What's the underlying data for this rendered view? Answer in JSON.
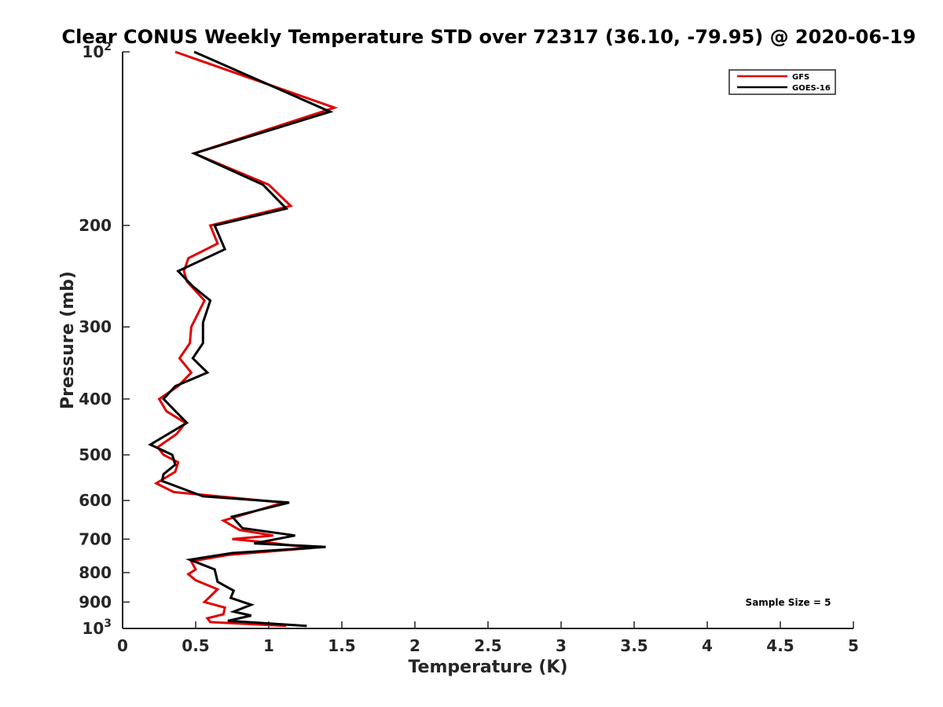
{
  "chart_data": {
    "type": "line",
    "title": "Clear CONUS Weekly Temperature STD over 72317 (36.10, -79.95) @ 2020-06-19",
    "xlabel": "Temperature (K)",
    "ylabel": "Pressure (mb)",
    "xlim": [
      0,
      5
    ],
    "ylim": [
      100,
      1000
    ],
    "y_scale": "log",
    "y_reversed": true,
    "grid": false,
    "legend_position": "top-right",
    "x_ticks": [
      "0",
      "0.5",
      "1",
      "1.5",
      "2",
      "2.5",
      "3",
      "3.5",
      "4",
      "4.5",
      "5"
    ],
    "y_ticks": [
      {
        "value": 100,
        "label": "10",
        "sup": "2"
      },
      {
        "value": 200,
        "label": "200",
        "sup": ""
      },
      {
        "value": 300,
        "label": "300",
        "sup": ""
      },
      {
        "value": 400,
        "label": "400",
        "sup": ""
      },
      {
        "value": 500,
        "label": "500",
        "sup": ""
      },
      {
        "value": 600,
        "label": "600",
        "sup": ""
      },
      {
        "value": 700,
        "label": "700",
        "sup": ""
      },
      {
        "value": 800,
        "label": "800",
        "sup": ""
      },
      {
        "value": 900,
        "label": "900",
        "sup": ""
      },
      {
        "value": 1000,
        "label": "10",
        "sup": "3"
      }
    ],
    "series": [
      {
        "name": "GFS",
        "color": "#e00000",
        "points": [
          [
            0.36,
            100
          ],
          [
            1.45,
            125
          ],
          [
            0.49,
            150
          ],
          [
            1.0,
            170
          ],
          [
            1.15,
            185
          ],
          [
            0.6,
            200
          ],
          [
            0.65,
            215
          ],
          [
            0.45,
            228
          ],
          [
            0.42,
            240
          ],
          [
            0.44,
            250
          ],
          [
            0.56,
            270
          ],
          [
            0.47,
            300
          ],
          [
            0.46,
            320
          ],
          [
            0.39,
            340
          ],
          [
            0.47,
            360
          ],
          [
            0.38,
            380
          ],
          [
            0.25,
            400
          ],
          [
            0.3,
            420
          ],
          [
            0.43,
            440
          ],
          [
            0.37,
            460
          ],
          [
            0.24,
            485
          ],
          [
            0.28,
            500
          ],
          [
            0.38,
            515
          ],
          [
            0.36,
            535
          ],
          [
            0.23,
            560
          ],
          [
            0.35,
            580
          ],
          [
            1.1,
            605
          ],
          [
            0.69,
            650
          ],
          [
            0.8,
            675
          ],
          [
            1.03,
            690
          ],
          [
            0.75,
            700
          ],
          [
            1.0,
            710
          ],
          [
            1.3,
            725
          ],
          [
            0.73,
            745
          ],
          [
            0.47,
            765
          ],
          [
            0.5,
            790
          ],
          [
            0.45,
            805
          ],
          [
            0.5,
            825
          ],
          [
            0.65,
            855
          ],
          [
            0.56,
            900
          ],
          [
            0.7,
            920
          ],
          [
            0.69,
            945
          ],
          [
            0.58,
            960
          ],
          [
            0.6,
            975
          ],
          [
            1.12,
            990
          ]
        ]
      },
      {
        "name": "GOES-16",
        "color": "#000000",
        "points": [
          [
            0.49,
            100
          ],
          [
            1.42,
            127
          ],
          [
            0.49,
            150
          ],
          [
            0.96,
            170
          ],
          [
            1.12,
            187
          ],
          [
            0.63,
            200
          ],
          [
            0.7,
            220
          ],
          [
            0.38,
            240
          ],
          [
            0.48,
            255
          ],
          [
            0.6,
            270
          ],
          [
            0.55,
            295
          ],
          [
            0.55,
            320
          ],
          [
            0.48,
            340
          ],
          [
            0.58,
            360
          ],
          [
            0.36,
            380
          ],
          [
            0.28,
            400
          ],
          [
            0.44,
            440
          ],
          [
            0.19,
            480
          ],
          [
            0.34,
            500
          ],
          [
            0.36,
            520
          ],
          [
            0.28,
            540
          ],
          [
            0.27,
            555
          ],
          [
            0.55,
            590
          ],
          [
            1.14,
            605
          ],
          [
            0.75,
            640
          ],
          [
            0.82,
            670
          ],
          [
            1.18,
            690
          ],
          [
            0.9,
            712
          ],
          [
            1.39,
            722
          ],
          [
            0.75,
            740
          ],
          [
            0.46,
            760
          ],
          [
            0.63,
            790
          ],
          [
            0.65,
            830
          ],
          [
            0.76,
            860
          ],
          [
            0.74,
            885
          ],
          [
            0.88,
            910
          ],
          [
            0.76,
            935
          ],
          [
            0.88,
            950
          ],
          [
            0.72,
            970
          ],
          [
            1.26,
            990
          ]
        ]
      }
    ],
    "annotation": "Sample Size = 5"
  }
}
